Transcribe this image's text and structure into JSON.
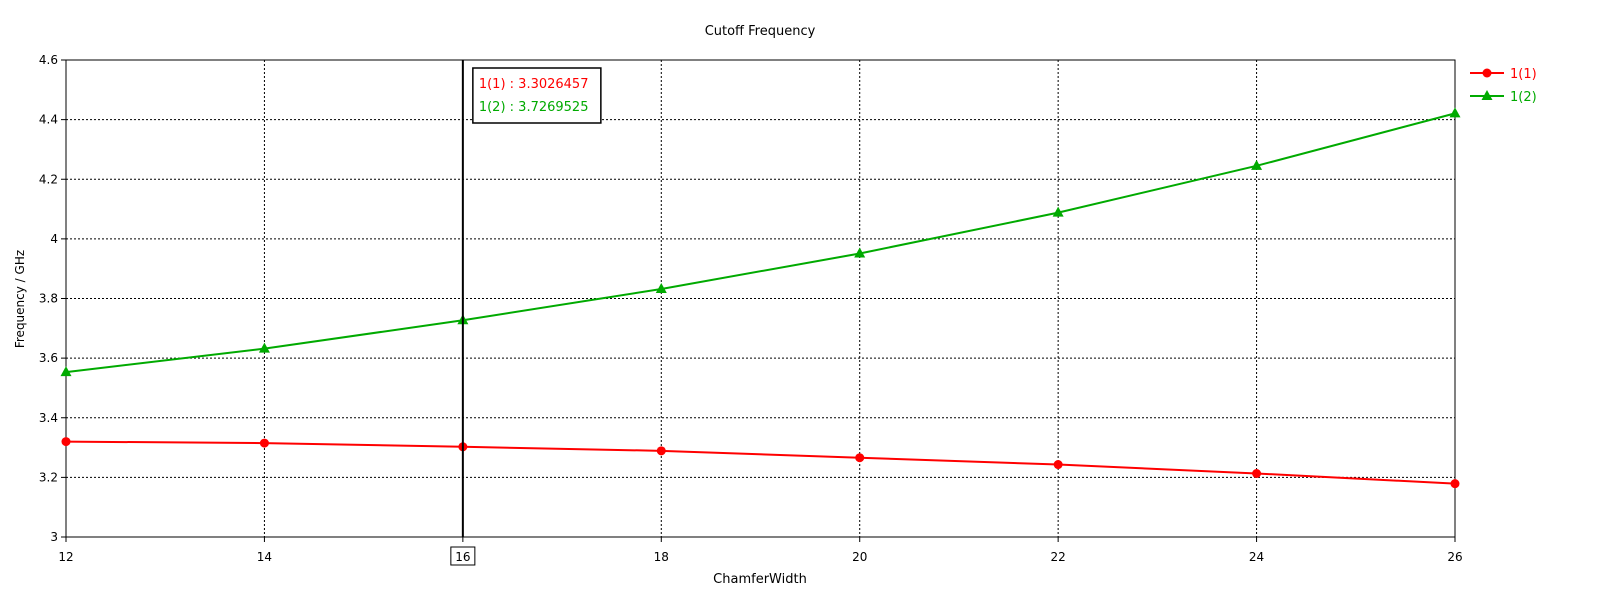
{
  "chart_data": {
    "type": "line",
    "title": "Cutoff Frequency",
    "xlabel": "ChamferWidth",
    "ylabel": "Frequency / GHz",
    "xlim": [
      12,
      26
    ],
    "ylim": [
      3,
      4.6
    ],
    "xticks": [
      "12",
      "14",
      "16",
      "18",
      "20",
      "22",
      "24",
      "26"
    ],
    "yticks": [
      "3",
      "3.2",
      "3.4",
      "3.6",
      "3.8",
      "4",
      "4.2",
      "4.4",
      "4.6"
    ],
    "grid": true,
    "legend_position": "top-right",
    "x": [
      12,
      14,
      16,
      18,
      20,
      22,
      24,
      26
    ],
    "series": [
      {
        "name": "1(1)",
        "color": "#ff0000",
        "marker": "circle",
        "values": [
          3.32,
          3.315,
          3.3026457,
          3.289,
          3.266,
          3.243,
          3.213,
          3.179
        ]
      },
      {
        "name": "1(2)",
        "color": "#00aa00",
        "marker": "triangle",
        "values": [
          3.553,
          3.632,
          3.7269525,
          3.832,
          3.951,
          4.088,
          4.245,
          4.421
        ]
      }
    ],
    "cursor": {
      "x": 16,
      "x_label": "16",
      "readouts": [
        {
          "text": "1(1) : 3.3026457",
          "color": "#ff0000"
        },
        {
          "text": "1(2) : 3.7269525",
          "color": "#00aa00"
        }
      ]
    }
  }
}
